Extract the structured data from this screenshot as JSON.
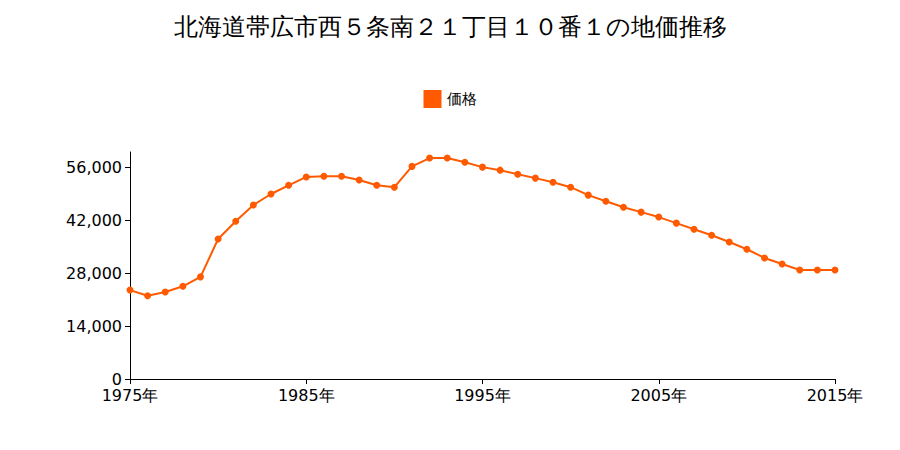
{
  "chart_data": {
    "type": "line",
    "title": "北海道帯広市西５条南２１丁目１０番１の地価推移",
    "x": [
      1975,
      1976,
      1977,
      1978,
      1979,
      1980,
      1981,
      1982,
      1983,
      1984,
      1985,
      1986,
      1987,
      1988,
      1989,
      1990,
      1991,
      1992,
      1993,
      1994,
      1995,
      1996,
      1997,
      1998,
      1999,
      2000,
      2001,
      2002,
      2003,
      2004,
      2005,
      2006,
      2007,
      2008,
      2009,
      2010,
      2011,
      2012,
      2013,
      2014,
      2015
    ],
    "series": [
      {
        "name": "価格",
        "color": "#ff5a00",
        "marker": "circle",
        "values": [
          23500,
          22000,
          23000,
          24500,
          27000,
          37000,
          41700,
          46000,
          48900,
          51200,
          53400,
          53600,
          53600,
          52600,
          51200,
          50700,
          56200,
          58400,
          58400,
          57300,
          56000,
          55200,
          54100,
          53100,
          52000,
          50700,
          48600,
          47000,
          45400,
          44100,
          42800,
          41200,
          39600,
          38000,
          36200,
          34300,
          32000,
          30400,
          28800,
          28800,
          28800
        ]
      }
    ],
    "xlim": [
      1975,
      2015
    ],
    "xticks": [
      {
        "value": 1975,
        "label": "1975年"
      },
      {
        "value": 1985,
        "label": "1985年"
      },
      {
        "value": 1995,
        "label": "1995年"
      },
      {
        "value": 2005,
        "label": "2005年"
      },
      {
        "value": 2015,
        "label": "2015年"
      }
    ],
    "ylim": [
      0,
      60000
    ],
    "yticks": [
      0,
      {
        "value": 14000,
        "label": "14,000"
      },
      {
        "value": 28000,
        "label": "28,000"
      },
      {
        "value": 42000,
        "label": "42,000"
      },
      {
        "value": 56000,
        "label": "56,000"
      }
    ],
    "grid": false,
    "legend": "top"
  }
}
